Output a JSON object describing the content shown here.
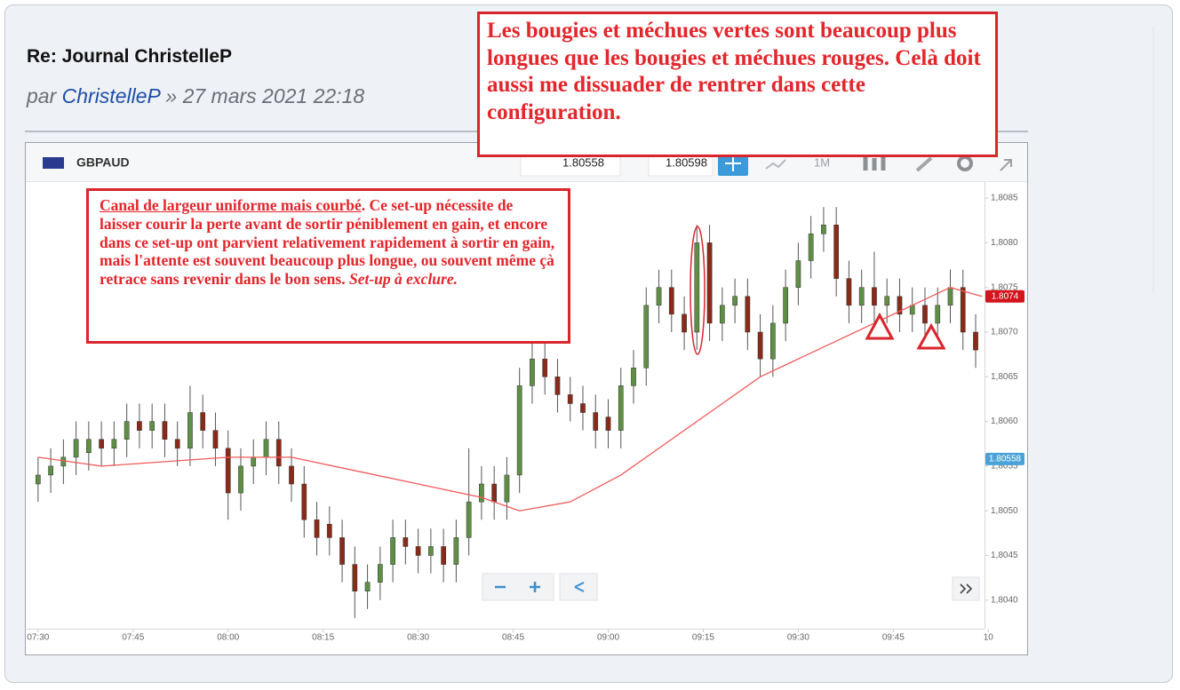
{
  "post": {
    "title": "Re: Journal ChristelleP",
    "by": "par",
    "author": "ChristelleP",
    "date": "» 27 mars 2021 22:18"
  },
  "annotations": {
    "top_note": "Les bougies et méchues vertes sont beaucoup plus longues que les bougies et méchues rouges. Celà doit aussi me dissuader de rentrer dans cette configuration.",
    "chart_note": [
      {
        "text": "Canal de largeur uniforme mais courbé",
        "style": "underline"
      },
      {
        "text": ". Ce set-up nécessite de laisser courir la perte avant de sortir péniblement en gain, et encore dans ce set-up ont parvient relativement rapidement à sortir en gain, mais l'attente est souvent beaucoup plus longue, ou souvent même çà retrace sans revenir dans le bon sens. "
      },
      {
        "text": "Set-up à exclure.",
        "style": "italic"
      }
    ]
  },
  "toolbar": {
    "symbol": "GBPAUD",
    "sell": "1.80558",
    "buy": "1.80598",
    "timeframe": "1M"
  },
  "chart_data": {
    "type": "candlestick",
    "up_color": "#5f8f45",
    "down_color": "#8a2a18",
    "x": [
      0,
      2,
      4,
      6,
      8,
      10,
      12,
      14,
      16,
      18,
      20,
      22,
      24,
      26,
      28,
      30,
      32,
      34,
      36,
      38,
      40,
      42,
      44,
      46,
      48,
      50,
      52,
      54,
      56,
      58,
      60,
      62,
      64,
      66,
      68,
      70,
      72,
      74,
      76,
      78,
      80,
      82,
      84,
      86,
      88,
      90,
      92,
      94,
      96,
      98,
      100,
      102,
      104,
      106,
      108,
      110,
      112,
      114,
      116,
      118,
      120,
      122,
      124,
      126,
      128,
      130,
      132,
      134,
      136,
      138,
      140,
      142,
      144,
      146,
      148
    ],
    "open": [
      1.8053,
      1.8054,
      1.8055,
      1.8056,
      1.80565,
      1.8058,
      1.8057,
      1.8058,
      1.806,
      1.8059,
      1.806,
      1.8058,
      1.8057,
      1.8061,
      1.8059,
      1.8057,
      1.8052,
      1.8055,
      1.8056,
      1.8058,
      1.8055,
      1.8053,
      1.8049,
      1.80485,
      1.8047,
      1.8044,
      1.8041,
      1.8042,
      1.8044,
      1.8047,
      1.8046,
      1.8045,
      1.8046,
      1.8044,
      1.8047,
      1.8051,
      1.8053,
      1.8051,
      1.8054,
      1.8064,
      1.8067,
      1.8065,
      1.8063,
      1.8062,
      1.8061,
      1.80605,
      1.8059,
      1.8064,
      1.8066,
      1.8073,
      1.8075,
      1.8072,
      1.807,
      1.808,
      1.8071,
      1.8073,
      1.8074,
      1.807,
      1.8067,
      1.8071,
      1.8075,
      1.8078,
      1.8081,
      1.8082,
      1.8076,
      1.8073,
      1.8075,
      1.8073,
      1.8074,
      1.8072,
      1.8073,
      1.8071,
      1.8073,
      1.8075,
      1.807
    ],
    "high": [
      1.8056,
      1.8057,
      1.8058,
      1.806,
      1.806,
      1.806,
      1.806,
      1.8062,
      1.8062,
      1.8062,
      1.8062,
      1.806,
      1.8064,
      1.8063,
      1.8061,
      1.8059,
      1.8057,
      1.8058,
      1.806,
      1.806,
      1.8057,
      1.8055,
      1.8051,
      1.80505,
      1.8049,
      1.8046,
      1.8044,
      1.8046,
      1.8049,
      1.8049,
      1.8048,
      1.8048,
      1.8048,
      1.8049,
      1.8057,
      1.8055,
      1.8055,
      1.8056,
      1.8066,
      1.807,
      1.8069,
      1.8067,
      1.8065,
      1.8064,
      1.8063,
      1.80625,
      1.8066,
      1.8068,
      1.8075,
      1.8077,
      1.8077,
      1.8074,
      1.8082,
      1.8082,
      1.8075,
      1.8076,
      1.8076,
      1.8072,
      1.8073,
      1.8077,
      1.808,
      1.8083,
      1.8084,
      1.8084,
      1.8078,
      1.8077,
      1.8079,
      1.8076,
      1.8076,
      1.8075,
      1.8075,
      1.8075,
      1.8077,
      1.8077,
      1.8072
    ],
    "low": [
      1.8051,
      1.8052,
      1.8053,
      1.8054,
      1.80545,
      1.8055,
      1.8055,
      1.8056,
      1.8057,
      1.8057,
      1.8056,
      1.8055,
      1.8055,
      1.8057,
      1.8055,
      1.8049,
      1.805,
      1.8053,
      1.8054,
      1.8053,
      1.8051,
      1.8047,
      1.8045,
      1.8045,
      1.8042,
      1.8038,
      1.8039,
      1.804,
      1.8042,
      1.8044,
      1.8043,
      1.8043,
      1.8042,
      1.8042,
      1.8045,
      1.8049,
      1.8049,
      1.8049,
      1.8052,
      1.8062,
      1.8063,
      1.8061,
      1.806,
      1.8059,
      1.8057,
      1.8057,
      1.8057,
      1.8062,
      1.8064,
      1.8071,
      1.807,
      1.8068,
      1.8068,
      1.8069,
      1.8069,
      1.8071,
      1.8068,
      1.8065,
      1.8065,
      1.8069,
      1.8073,
      1.8076,
      1.8079,
      1.8074,
      1.8071,
      1.8071,
      1.8071,
      1.8071,
      1.807,
      1.807,
      1.8069,
      1.8069,
      1.8071,
      1.8068,
      1.8066
    ],
    "close": [
      1.8054,
      1.8055,
      1.8056,
      1.8058,
      1.8058,
      1.8057,
      1.8058,
      1.806,
      1.8059,
      1.806,
      1.8058,
      1.8057,
      1.8061,
      1.8059,
      1.8057,
      1.8052,
      1.8055,
      1.8056,
      1.8058,
      1.8055,
      1.8053,
      1.8049,
      1.8047,
      1.8047,
      1.8044,
      1.8041,
      1.8042,
      1.8044,
      1.8047,
      1.8046,
      1.8045,
      1.8046,
      1.8044,
      1.8047,
      1.8051,
      1.8053,
      1.8051,
      1.8054,
      1.8064,
      1.8067,
      1.8065,
      1.8063,
      1.8062,
      1.8061,
      1.8059,
      1.8059,
      1.8064,
      1.8066,
      1.8073,
      1.8075,
      1.8072,
      1.807,
      1.808,
      1.8071,
      1.8073,
      1.8074,
      1.807,
      1.8067,
      1.8071,
      1.8075,
      1.8078,
      1.8081,
      1.8082,
      1.8076,
      1.8073,
      1.8075,
      1.8073,
      1.8074,
      1.8072,
      1.8073,
      1.8071,
      1.8073,
      1.8075,
      1.807,
      1.8068
    ],
    "moving_average": {
      "color": "#f25a5a",
      "x": [
        0,
        10,
        20,
        30,
        40,
        50,
        60,
        70,
        76,
        84,
        92,
        100,
        108,
        114,
        120,
        126,
        132,
        138,
        144,
        149
      ],
      "values": [
        1.8056,
        1.8055,
        1.80555,
        1.8056,
        1.8056,
        1.80545,
        1.8053,
        1.80515,
        1.805,
        1.8051,
        1.8054,
        1.8058,
        1.8062,
        1.8065,
        1.8067,
        1.8069,
        1.8071,
        1.8073,
        1.8075,
        1.8074
      ]
    },
    "xlim": [
      -1.8,
      149.4
    ],
    "xticks": [
      {
        "value": 0,
        "label": "07:30"
      },
      {
        "value": 15,
        "label": "07:45"
      },
      {
        "value": 30,
        "label": "08:00"
      },
      {
        "value": 45,
        "label": "08:15"
      },
      {
        "value": 60,
        "label": "08:30"
      },
      {
        "value": 75,
        "label": "08:45"
      },
      {
        "value": 90,
        "label": "09:00"
      },
      {
        "value": 105,
        "label": "09:15"
      },
      {
        "value": 120,
        "label": "09:30"
      },
      {
        "value": 135,
        "label": "09:45"
      },
      {
        "value": 150,
        "label": "10"
      }
    ],
    "ylim": [
      1.80368,
      1.80868
    ],
    "yticks": [
      {
        "value": 1.804,
        "label": "1,8040"
      },
      {
        "value": 1.8045,
        "label": "1,8045"
      },
      {
        "value": 1.805,
        "label": "1,8050"
      },
      {
        "value": 1.8055,
        "label": "1,8055"
      },
      {
        "value": 1.806,
        "label": "1,8060"
      },
      {
        "value": 1.8065,
        "label": "1,8065"
      },
      {
        "value": 1.807,
        "label": "1,8070"
      },
      {
        "value": 1.8075,
        "label": "1,8075"
      },
      {
        "value": 1.808,
        "label": "1,8080"
      },
      {
        "value": 1.8085,
        "label": "1,8085"
      }
    ],
    "price_tags": [
      {
        "value": 1.8074,
        "label": "1.8074",
        "color": "#d4141c"
      },
      {
        "value": 1.80558,
        "label": "1.80558",
        "color": "#4aa3d8"
      }
    ]
  }
}
